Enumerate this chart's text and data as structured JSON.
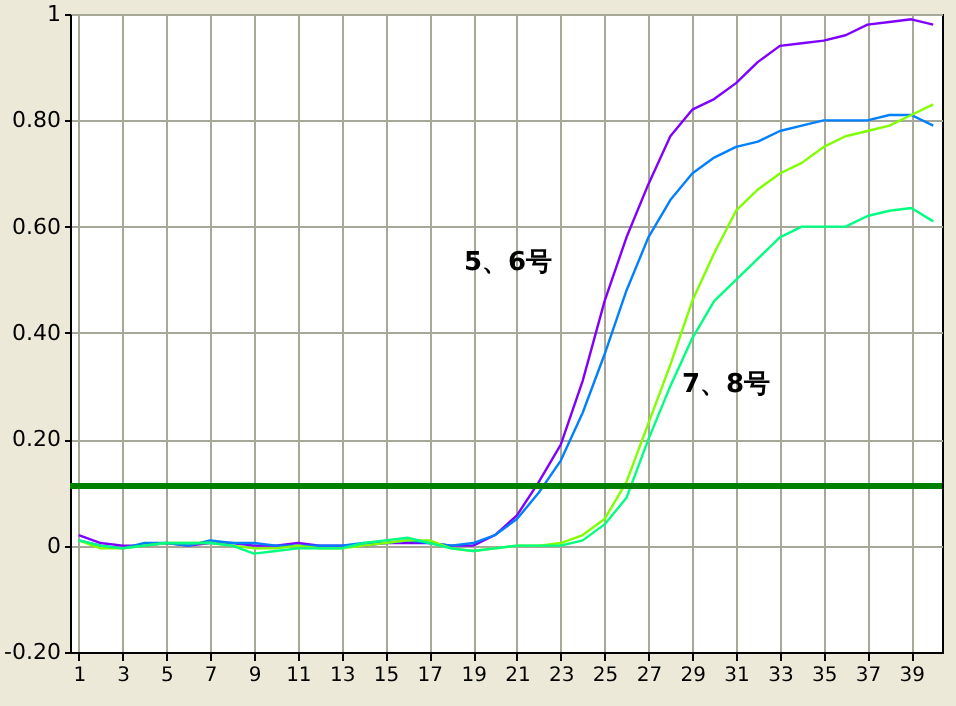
{
  "chart_data": {
    "type": "line",
    "x": [
      1,
      2,
      3,
      4,
      5,
      6,
      7,
      8,
      9,
      10,
      11,
      12,
      13,
      14,
      15,
      16,
      17,
      18,
      19,
      20,
      21,
      22,
      23,
      24,
      25,
      26,
      27,
      28,
      29,
      30,
      31,
      32,
      33,
      34,
      35,
      36,
      37,
      38,
      39,
      40
    ],
    "series": [
      {
        "color": "#8000ff",
        "values": [
          0.02,
          0.005,
          0,
          0,
          0.005,
          0,
          0.005,
          0.005,
          0,
          0,
          0.005,
          0,
          0,
          0,
          0.005,
          0.005,
          0.005,
          0,
          0,
          0.02,
          0.057,
          0.12,
          0.19,
          0.31,
          0.46,
          0.58,
          0.68,
          0.77,
          0.82,
          0.84,
          0.87,
          0.91,
          0.94,
          0.945,
          0.95,
          0.96,
          0.98,
          0.985,
          0.99,
          0.98
        ]
      },
      {
        "color": "#0080ff",
        "values": [
          0.01,
          0,
          -0.005,
          0.005,
          0.005,
          0,
          0.01,
          0.005,
          0.005,
          0,
          0,
          0,
          0,
          0.005,
          0.005,
          0.01,
          0.005,
          0,
          0.005,
          0.02,
          0.05,
          0.1,
          0.16,
          0.25,
          0.36,
          0.48,
          0.58,
          0.65,
          0.7,
          0.73,
          0.75,
          0.76,
          0.78,
          0.79,
          0.8,
          0.8,
          0.8,
          0.81,
          0.81,
          0.79
        ]
      },
      {
        "color": "#80ff00",
        "values": [
          0.01,
          -0.005,
          -0.005,
          0,
          0.005,
          0.005,
          0.005,
          0,
          -0.005,
          -0.005,
          0,
          -0.005,
          -0.005,
          0,
          0.005,
          0.01,
          0.01,
          -0.005,
          -0.01,
          -0.005,
          0,
          0,
          0.005,
          0.02,
          0.05,
          0.12,
          0.23,
          0.34,
          0.46,
          0.55,
          0.63,
          0.67,
          0.7,
          0.72,
          0.75,
          0.77,
          0.78,
          0.79,
          0.81,
          0.83
        ]
      },
      {
        "color": "#00ff80",
        "values": [
          0.01,
          0,
          -0.005,
          0,
          0.005,
          0.005,
          0.005,
          0,
          -0.015,
          -0.01,
          -0.005,
          -0.005,
          -0.005,
          0.005,
          0.01,
          0.015,
          0.005,
          -0.005,
          -0.01,
          -0.005,
          0,
          0,
          0,
          0.01,
          0.04,
          0.09,
          0.2,
          0.3,
          0.39,
          0.46,
          0.5,
          0.54,
          0.58,
          0.6,
          0.6,
          0.6,
          0.62,
          0.63,
          0.635,
          0.61
        ]
      }
    ],
    "xlim": [
      0.6,
      40.4
    ],
    "ylim": [
      -0.2,
      1
    ],
    "xticks": [
      1,
      3,
      5,
      7,
      9,
      11,
      13,
      15,
      17,
      19,
      21,
      23,
      25,
      27,
      29,
      31,
      33,
      35,
      37,
      39
    ],
    "yticks": [
      {
        "value": -0.2,
        "label": "-0.20"
      },
      0,
      {
        "value": 0.2,
        "label": "0.20"
      },
      {
        "value": 0.4,
        "label": "0.40"
      },
      {
        "value": 0.6,
        "label": "0.60"
      },
      {
        "value": 0.8,
        "label": "0.80"
      },
      1
    ],
    "grid": true,
    "marker": "none",
    "line_style": "solid",
    "ref_lines": [
      {
        "axis": "y",
        "value": 0.112,
        "color": "#008000"
      }
    ],
    "annotations": [
      "5、6号",
      "7、8号"
    ]
  }
}
